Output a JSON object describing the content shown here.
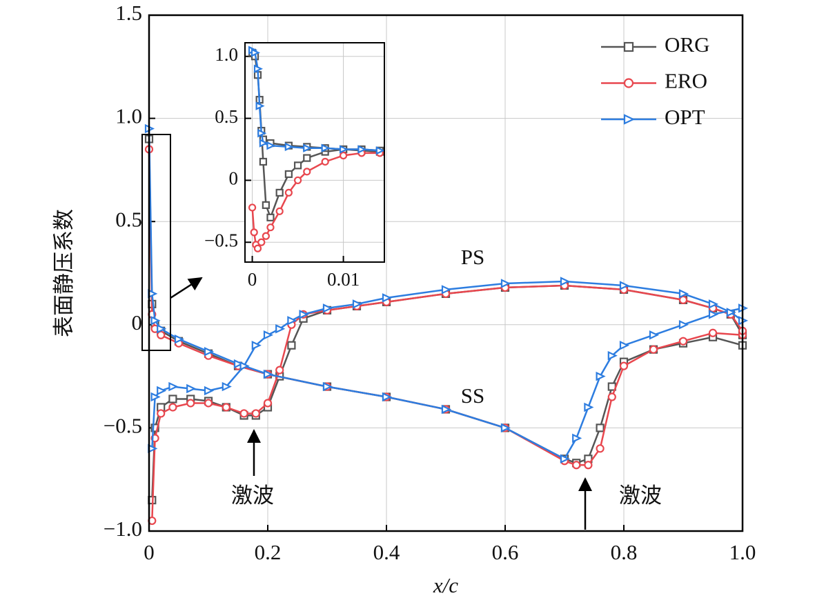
{
  "chart_data": [
    {
      "type": "line",
      "x_label": "x/c",
      "y_label": "表面静压系数",
      "xlim": [
        0,
        1
      ],
      "ylim": [
        -1,
        1.5
      ],
      "xticks": [
        0,
        0.2,
        0.4,
        0.6,
        0.8,
        {
          "value": 1,
          "label": "1.0"
        }
      ],
      "yticks": [
        {
          "value": -1,
          "label": "−1.0"
        },
        {
          "value": -0.5,
          "label": "−0.5"
        },
        0,
        0.5,
        {
          "value": 1,
          "label": "1.0"
        },
        1.5
      ],
      "grid": true,
      "legend": "upper right",
      "annotations": [
        "PS",
        "SS",
        "激波",
        "激波"
      ],
      "x": [
        0,
        0.005,
        0.01,
        0.02,
        0.05,
        0.1,
        0.15,
        0.2,
        0.3,
        0.4,
        0.5,
        0.6,
        0.7,
        0.72,
        0.74,
        0.76,
        0.78,
        0.8,
        0.85,
        0.9,
        0.95,
        1,
        null,
        0.005,
        0.01,
        0.02,
        0.04,
        0.07,
        0.1,
        0.13,
        0.16,
        0.18,
        0.2,
        0.22,
        0.24,
        0.26,
        0.3,
        0.35,
        0.4,
        0.5,
        0.6,
        0.7,
        0.8,
        0.9,
        0.95,
        0.98,
        1
      ],
      "series": [
        {
          "name": "ORG",
          "color": "#555555",
          "marker": "square",
          "values": [
            0.9,
            0.1,
            0,
            -0.03,
            -0.08,
            -0.14,
            -0.2,
            -0.24,
            -0.3,
            -0.35,
            -0.41,
            -0.5,
            -0.65,
            -0.67,
            -0.65,
            -0.5,
            -0.3,
            -0.18,
            -0.12,
            -0.09,
            -0.06,
            -0.1,
            null,
            -0.85,
            -0.5,
            -0.4,
            -0.36,
            -0.36,
            -0.37,
            -0.4,
            -0.44,
            -0.44,
            -0.4,
            -0.25,
            -0.1,
            0.03,
            0.07,
            0.09,
            0.11,
            0.15,
            0.18,
            0.19,
            0.17,
            0.12,
            0.08,
            0.05,
            -0.05
          ]
        },
        {
          "name": "ERO",
          "color": "#e8474e",
          "marker": "circle",
          "values": [
            0.85,
            0.05,
            -0.02,
            -0.05,
            -0.09,
            -0.15,
            -0.2,
            -0.24,
            -0.3,
            -0.35,
            -0.41,
            -0.5,
            -0.66,
            -0.68,
            -0.68,
            -0.6,
            -0.35,
            -0.2,
            -0.12,
            -0.08,
            -0.04,
            -0.05,
            null,
            -0.95,
            -0.55,
            -0.43,
            -0.4,
            -0.38,
            -0.38,
            -0.4,
            -0.43,
            -0.43,
            -0.38,
            -0.22,
            0,
            0.05,
            0.07,
            0.09,
            0.11,
            0.15,
            0.18,
            0.19,
            0.17,
            0.12,
            0.08,
            0.05,
            -0.03
          ]
        },
        {
          "name": "OPT",
          "color": "#2d7de0",
          "marker": "triangle",
          "values": [
            0.95,
            0.15,
            0.02,
            -0.02,
            -0.07,
            -0.13,
            -0.19,
            -0.24,
            -0.3,
            -0.35,
            -0.41,
            -0.5,
            -0.65,
            -0.55,
            -0.4,
            -0.25,
            -0.15,
            -0.1,
            -0.05,
            0,
            0.05,
            0.08,
            null,
            -0.6,
            -0.35,
            -0.32,
            -0.3,
            -0.31,
            -0.32,
            -0.3,
            -0.2,
            -0.1,
            -0.05,
            -0.02,
            0.02,
            0.05,
            0.08,
            0.1,
            0.13,
            0.17,
            0.2,
            0.21,
            0.19,
            0.15,
            0.1,
            0.06,
            0.02
          ]
        }
      ]
    },
    {
      "type": "line",
      "xlim": [
        -0.0008,
        0.0145
      ],
      "ylim": [
        -0.66,
        1.11
      ],
      "xticks": [
        0,
        0.01
      ],
      "yticks": [
        {
          "value": -0.5,
          "label": "−0.5"
        },
        0,
        0.5,
        {
          "value": 1,
          "label": "1.0"
        }
      ],
      "grid": true,
      "series": [
        {
          "name": "ORG",
          "color": "#555555",
          "marker": "square",
          "x": [
            0,
            0.0003,
            0.0006,
            0.0008,
            0.001,
            0.0012,
            0.0015,
            0.002,
            0.003,
            0.004,
            0.005,
            0.006,
            0.008,
            0.01,
            0.012,
            0.014,
            null,
            0.0012,
            0.002,
            0.004,
            0.006,
            0.008,
            0.01,
            0.012,
            0.014
          ],
          "values": [
            1.03,
            1,
            0.85,
            0.65,
            0.4,
            0.15,
            -0.2,
            -0.3,
            -0.1,
            0.05,
            0.12,
            0.18,
            0.23,
            0.25,
            0.24,
            0.23,
            null,
            0.33,
            0.3,
            0.28,
            0.27,
            0.26,
            0.25,
            0.25,
            0.24
          ]
        },
        {
          "name": "ERO",
          "color": "#e8474e",
          "marker": "circle",
          "x": [
            0,
            0.0002,
            0.0004,
            0.0006,
            0.001,
            0.0015,
            0.002,
            0.003,
            0.004,
            0.005,
            0.006,
            0.008,
            0.01,
            0.012,
            0.014
          ],
          "values": [
            -0.22,
            -0.42,
            -0.52,
            -0.55,
            -0.5,
            -0.45,
            -0.38,
            -0.25,
            -0.1,
            0,
            0.07,
            0.15,
            0.2,
            0.22,
            0.22
          ]
        },
        {
          "name": "OPT",
          "color": "#2d7de0",
          "marker": "triangle",
          "x": [
            0,
            0.0003,
            0.0006,
            0.0008,
            0.001,
            0.0012,
            0.002,
            0.004,
            0.006,
            0.008,
            0.01,
            0.012,
            0.014
          ],
          "values": [
            1.05,
            1.03,
            0.9,
            0.6,
            0.38,
            0.3,
            0.28,
            0.27,
            0.26,
            0.26,
            0.25,
            0.25,
            0.24
          ]
        }
      ]
    }
  ]
}
